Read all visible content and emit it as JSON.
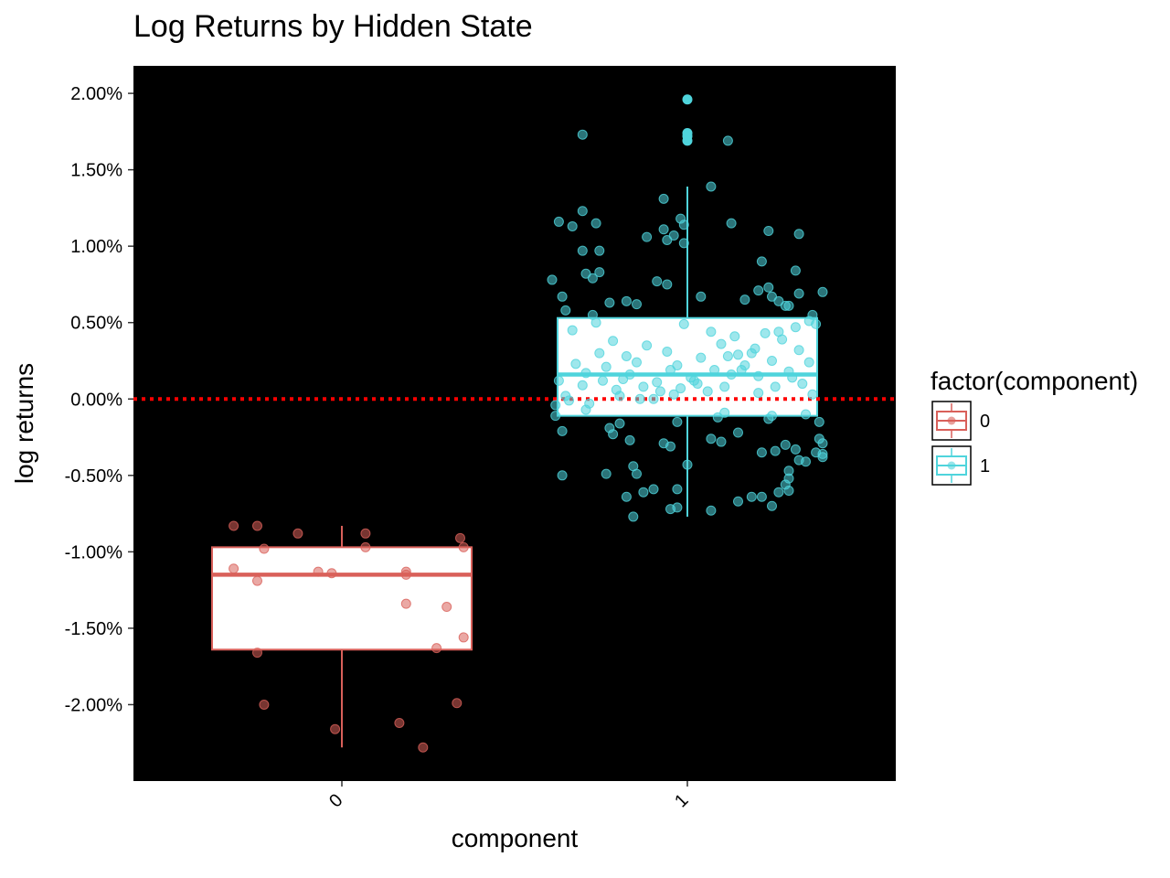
{
  "chart_data": {
    "type": "boxplot",
    "title": "Log Returns by Hidden State",
    "xlabel": "component",
    "ylabel": "log returns",
    "categories": [
      "0",
      "1"
    ],
    "y_ticks": [
      "2.00%",
      "1.50%",
      "1.00%",
      "0.50%",
      "0.00%",
      "-0.50%",
      "-1.00%",
      "-1.50%",
      "-2.00%"
    ],
    "y_tick_values": [
      2.0,
      1.5,
      1.0,
      0.5,
      0.0,
      -0.5,
      -1.0,
      -1.5,
      -2.0
    ],
    "ylim": [
      -2.5,
      2.18
    ],
    "panel_background": "#000000",
    "reference_line": {
      "y": 0.0,
      "color": "#ff0000",
      "style": "dotted"
    },
    "legend": {
      "title": "factor(component)",
      "position": "right",
      "entries": [
        {
          "label": "0",
          "color": "#d9605a"
        },
        {
          "label": "1",
          "color": "#4fd4dc"
        }
      ]
    },
    "series": [
      {
        "name": "0",
        "color": "#d9605a",
        "box": {
          "q1": -1.64,
          "median": -1.15,
          "q3": -0.97,
          "whisker_low": -2.28,
          "whisker_high": -0.83
        },
        "outliers": [],
        "points": [
          [
            -0.32,
            -0.83
          ],
          [
            -0.25,
            -0.83
          ],
          [
            -0.13,
            -0.88
          ],
          [
            0.07,
            -0.88
          ],
          [
            0.35,
            -0.91
          ],
          [
            -0.23,
            -0.98
          ],
          [
            0.07,
            -0.97
          ],
          [
            0.36,
            -0.97
          ],
          [
            -0.32,
            -1.11
          ],
          [
            -0.07,
            -1.13
          ],
          [
            -0.03,
            -1.14
          ],
          [
            0.19,
            -1.13
          ],
          [
            0.19,
            -1.15
          ],
          [
            -0.25,
            -1.19
          ],
          [
            0.19,
            -1.34
          ],
          [
            0.31,
            -1.36
          ],
          [
            0.36,
            -1.56
          ],
          [
            0.28,
            -1.63
          ],
          [
            -0.25,
            -1.66
          ],
          [
            -0.23,
            -2.0
          ],
          [
            0.34,
            -1.99
          ],
          [
            -0.02,
            -2.16
          ],
          [
            0.17,
            -2.12
          ],
          [
            0.24,
            -2.28
          ]
        ]
      },
      {
        "name": "1",
        "color": "#4fd4dc",
        "box": {
          "q1": -0.11,
          "median": 0.16,
          "q3": 0.53,
          "whisker_low": -0.77,
          "whisker_high": 1.39
        },
        "outliers": [
          1.96,
          1.74,
          1.72,
          1.69
        ],
        "points": [
          [
            -0.31,
            1.73
          ],
          [
            0.12,
            1.69
          ],
          [
            0.07,
            1.39
          ],
          [
            -0.07,
            1.31
          ],
          [
            -0.38,
            1.16
          ],
          [
            -0.34,
            1.13
          ],
          [
            -0.31,
            1.23
          ],
          [
            -0.02,
            1.18
          ],
          [
            -0.01,
            1.14
          ],
          [
            0.13,
            1.15
          ],
          [
            -0.27,
            1.15
          ],
          [
            -0.07,
            1.11
          ],
          [
            -0.04,
            1.07
          ],
          [
            -0.12,
            1.06
          ],
          [
            0.24,
            1.1
          ],
          [
            0.33,
            1.08
          ],
          [
            -0.31,
            0.97
          ],
          [
            -0.26,
            0.97
          ],
          [
            -0.06,
            1.04
          ],
          [
            -0.01,
            1.02
          ],
          [
            -0.4,
            0.78
          ],
          [
            -0.3,
            0.82
          ],
          [
            -0.26,
            0.83
          ],
          [
            -0.28,
            0.79
          ],
          [
            -0.09,
            0.77
          ],
          [
            0.22,
            0.9
          ],
          [
            0.32,
            0.84
          ],
          [
            -0.37,
            0.67
          ],
          [
            -0.23,
            0.63
          ],
          [
            -0.18,
            0.64
          ],
          [
            -0.15,
            0.62
          ],
          [
            -0.06,
            0.75
          ],
          [
            0.04,
            0.67
          ],
          [
            0.17,
            0.65
          ],
          [
            0.25,
            0.67
          ],
          [
            0.27,
            0.64
          ],
          [
            0.29,
            0.61
          ],
          [
            0.33,
            0.69
          ],
          [
            0.4,
            0.7
          ],
          [
            -0.36,
            0.58
          ],
          [
            -0.28,
            0.55
          ],
          [
            0.21,
            0.71
          ],
          [
            0.24,
            0.73
          ],
          [
            0.3,
            0.61
          ],
          [
            0.37,
            0.55
          ],
          [
            -0.38,
            0.12
          ],
          [
            -0.36,
            0.02
          ],
          [
            -0.39,
            -0.04
          ],
          [
            -0.39,
            -0.11
          ],
          [
            -0.37,
            -0.21
          ],
          [
            -0.37,
            -0.5
          ],
          [
            -0.3,
            -0.07
          ],
          [
            -0.23,
            -0.19
          ],
          [
            -0.22,
            -0.23
          ],
          [
            -0.2,
            -0.16
          ],
          [
            -0.17,
            -0.27
          ],
          [
            -0.24,
            -0.49
          ],
          [
            -0.18,
            -0.64
          ],
          [
            -0.16,
            -0.44
          ],
          [
            -0.15,
            -0.49
          ],
          [
            -0.13,
            -0.61
          ],
          [
            -0.16,
            -0.77
          ],
          [
            -0.1,
            -0.59
          ],
          [
            -0.03,
            -0.59
          ],
          [
            -0.03,
            -0.71
          ],
          [
            -0.05,
            -0.72
          ],
          [
            0.0,
            -0.43
          ],
          [
            0.07,
            -0.26
          ],
          [
            0.1,
            -0.28
          ],
          [
            0.09,
            -0.12
          ],
          [
            0.15,
            -0.22
          ],
          [
            0.07,
            -0.73
          ],
          [
            0.15,
            -0.67
          ],
          [
            0.19,
            -0.64
          ],
          [
            0.22,
            -0.64
          ],
          [
            0.22,
            -0.35
          ],
          [
            0.26,
            -0.34
          ],
          [
            0.29,
            -0.3
          ],
          [
            0.32,
            -0.33
          ],
          [
            0.25,
            -0.7
          ],
          [
            0.27,
            -0.61
          ],
          [
            0.29,
            -0.56
          ],
          [
            0.3,
            -0.47
          ],
          [
            0.3,
            -0.52
          ],
          [
            0.3,
            -0.6
          ],
          [
            0.33,
            -0.4
          ],
          [
            0.35,
            -0.41
          ],
          [
            0.38,
            -0.35
          ],
          [
            0.4,
            -0.36
          ],
          [
            0.39,
            -0.26
          ],
          [
            0.4,
            -0.29
          ],
          [
            0.39,
            -0.15
          ],
          [
            0.4,
            -0.38
          ],
          [
            -0.07,
            -0.29
          ],
          [
            -0.05,
            -0.31
          ],
          [
            -0.03,
            -0.15
          ],
          [
            0.11,
            -0.09
          ],
          [
            0.24,
            -0.13
          ],
          [
            0.25,
            -0.11
          ],
          [
            0.35,
            -0.1
          ],
          [
            -0.31,
            0.09
          ],
          [
            -0.29,
            -0.03
          ],
          [
            -0.25,
            0.12
          ],
          [
            -0.2,
            0.02
          ],
          [
            -0.17,
            0.16
          ],
          [
            -0.13,
            0.08
          ],
          [
            -0.1,
            0.0
          ],
          [
            -0.05,
            0.19
          ],
          [
            -0.02,
            0.07
          ],
          [
            0.03,
            0.1
          ],
          [
            0.08,
            0.19
          ],
          [
            0.13,
            0.16
          ],
          [
            0.17,
            0.22
          ],
          [
            0.21,
            0.04
          ],
          [
            0.26,
            0.08
          ],
          [
            0.31,
            0.14
          ],
          [
            0.36,
            0.24
          ],
          [
            -0.34,
            0.45
          ],
          [
            -0.27,
            0.5
          ],
          [
            -0.22,
            0.38
          ],
          [
            -0.18,
            0.28
          ],
          [
            -0.12,
            0.35
          ],
          [
            -0.06,
            0.31
          ],
          [
            -0.01,
            0.49
          ],
          [
            0.04,
            0.27
          ],
          [
            0.1,
            0.36
          ],
          [
            0.14,
            0.41
          ],
          [
            0.19,
            0.3
          ],
          [
            0.23,
            0.43
          ],
          [
            0.28,
            0.39
          ],
          [
            0.32,
            0.47
          ],
          [
            0.36,
            0.51
          ],
          [
            -0.33,
            0.23
          ],
          [
            -0.26,
            0.3
          ],
          [
            -0.21,
            0.06
          ],
          [
            -0.15,
            0.24
          ],
          [
            -0.09,
            0.11
          ],
          [
            -0.04,
            0.03
          ],
          [
            0.01,
            0.14
          ],
          [
            0.06,
            0.05
          ],
          [
            0.12,
            0.28
          ],
          [
            0.16,
            0.19
          ],
          [
            0.2,
            0.33
          ],
          [
            0.25,
            0.25
          ],
          [
            0.3,
            0.18
          ],
          [
            0.34,
            0.1
          ],
          [
            0.38,
            0.49
          ],
          [
            -0.35,
            -0.01
          ],
          [
            -0.3,
            0.17
          ],
          [
            -0.24,
            0.21
          ],
          [
            -0.19,
            0.13
          ],
          [
            -0.14,
            0.0
          ],
          [
            -0.08,
            0.05
          ],
          [
            -0.03,
            0.22
          ],
          [
            0.02,
            0.12
          ],
          [
            0.07,
            0.44
          ],
          [
            0.11,
            0.08
          ],
          [
            0.15,
            0.29
          ],
          [
            0.21,
            0.15
          ],
          [
            0.27,
            0.44
          ],
          [
            0.33,
            0.32
          ],
          [
            0.37,
            0.03
          ]
        ]
      }
    ]
  }
}
